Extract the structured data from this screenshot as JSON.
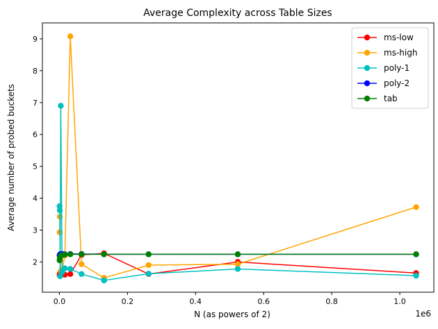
{
  "chart_data": {
    "type": "line",
    "title": "Average Complexity across Table Sizes",
    "xlabel": "N (as powers of 2)",
    "ylabel": "Average number of probed buckets",
    "x_offset_label": "1e6",
    "xlim": [
      -0.05,
      1.1
    ],
    "ylim": [
      1.05,
      9.5
    ],
    "xticks": [
      0.0,
      0.2,
      0.4,
      0.6,
      0.8,
      1.0
    ],
    "xtick_labels": [
      "0.0",
      "0.2",
      "0.4",
      "0.6",
      "0.8",
      "1.0"
    ],
    "yticks": [
      2,
      3,
      4,
      5,
      6,
      7,
      8,
      9
    ],
    "ytick_labels": [
      "2",
      "3",
      "4",
      "5",
      "6",
      "7",
      "8",
      "9"
    ],
    "legend_position": "top-right",
    "grid": false,
    "x": [
      0.0005,
      0.001,
      0.002,
      0.004,
      0.008,
      0.016,
      0.032,
      0.065,
      0.131,
      0.262,
      0.524,
      1.048
    ],
    "series": [
      {
        "name": "ms-low",
        "color": "#ff0000",
        "values": [
          1.58,
          1.62,
          1.65,
          1.7,
          1.62,
          1.6,
          1.62,
          2.22,
          2.27,
          1.62,
          2.0,
          1.65
        ]
      },
      {
        "name": "ms-high",
        "color": "#ffa500",
        "values": [
          2.93,
          3.42,
          2.05,
          1.72,
          1.75,
          2.2,
          9.08,
          1.93,
          1.5,
          1.9,
          1.93,
          3.72
        ]
      },
      {
        "name": "poly-1",
        "color": "#00bfbf",
        "values": [
          3.75,
          3.62,
          1.55,
          6.9,
          1.68,
          1.8,
          1.78,
          1.62,
          1.42,
          1.63,
          1.78,
          1.57
        ]
      },
      {
        "name": "poly-2",
        "color": "#0000ff",
        "values": [
          2.2,
          2.22,
          2.24,
          2.24,
          2.25,
          2.24,
          2.25,
          2.25,
          2.24,
          2.24,
          2.24,
          2.24
        ]
      },
      {
        "name": "tab",
        "color": "#008000",
        "values": [
          2.05,
          2.1,
          2.15,
          2.2,
          2.22,
          2.23,
          2.24,
          2.24,
          2.24,
          2.24,
          2.24,
          2.24
        ]
      }
    ]
  }
}
